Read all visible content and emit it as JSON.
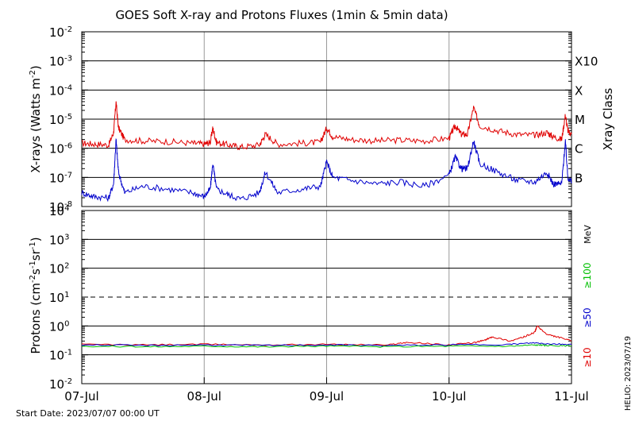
{
  "title": "GOES Soft X-ray and Protons Fluxes   (1min & 5min data)",
  "footer": {
    "start_date": "Start Date: 2023/07/07 00:00 UT",
    "stamp": "HELIO: 2023/07/19"
  },
  "colors": {
    "red": "#e00000",
    "blue": "#0000cc",
    "green": "#00c000",
    "grid": "#000000",
    "vgrid": "#999999"
  },
  "chart_data": [
    {
      "type": "line",
      "name": "xray",
      "ylabel_main": "X-rays (Watts m",
      "ylabel_sup": "-2",
      "ylabel_end": ")",
      "right_axis_label": "Xray Class",
      "y_scale": "log",
      "ylim": [
        1e-08,
        0.01
      ],
      "y_ticks": [
        {
          "base": "10",
          "exp": "-2"
        },
        {
          "base": "10",
          "exp": "-3"
        },
        {
          "base": "10",
          "exp": "-4"
        },
        {
          "base": "10",
          "exp": "-5"
        },
        {
          "base": "10",
          "exp": "-6"
        },
        {
          "base": "10",
          "exp": "-7"
        },
        {
          "base": "10",
          "exp": "-8"
        }
      ],
      "y_tick_values": [
        0.01,
        0.001,
        0.0001,
        1e-05,
        1e-06,
        1e-07,
        1e-08
      ],
      "gridlines": [
        0.001,
        0.0001,
        1e-05,
        1e-06,
        1e-07
      ],
      "classes": [
        {
          "label": "X10",
          "value": 0.001
        },
        {
          "label": "X",
          "value": 0.0001
        },
        {
          "label": "M",
          "value": 1e-05
        },
        {
          "label": "C",
          "value": 1e-06
        },
        {
          "label": "B",
          "value": 1e-07
        }
      ],
      "xlim_days": [
        0,
        4
      ],
      "series": [
        {
          "color_key": "red",
          "x": [
            0,
            0.1,
            0.22,
            0.26,
            0.28,
            0.3,
            0.35,
            0.5,
            0.7,
            0.9,
            1.0,
            1.05,
            1.07,
            1.1,
            1.2,
            1.3,
            1.45,
            1.5,
            1.6,
            1.8,
            1.95,
            2.0,
            2.05,
            2.2,
            2.4,
            2.6,
            2.8,
            3.0,
            3.05,
            3.1,
            3.15,
            3.2,
            3.25,
            3.4,
            3.55,
            3.7,
            3.8,
            3.85,
            3.92,
            3.95,
            3.97,
            4.0
          ],
          "y": [
            1.5e-06,
            1.4e-06,
            1.3e-06,
            3.5e-06,
            3.8e-05,
            5e-06,
            2e-06,
            1.8e-06,
            1.7e-06,
            1.5e-06,
            1.4e-06,
            1.6e-06,
            5e-06,
            1.6e-06,
            1.3e-06,
            1.1e-06,
            1.3e-06,
            3e-06,
            1.4e-06,
            1.5e-06,
            1.6e-06,
            5e-06,
            2.5e-06,
            2e-06,
            1.8e-06,
            1.9e-06,
            1.8e-06,
            2.2e-06,
            6e-06,
            3e-06,
            3e-06,
            2.5e-05,
            6e-06,
            4e-06,
            3e-06,
            2.8e-06,
            3.5e-06,
            2.5e-06,
            2e-06,
            1.4e-05,
            4e-06,
            3e-06
          ]
        },
        {
          "color_key": "blue",
          "x": [
            0,
            0.1,
            0.22,
            0.26,
            0.28,
            0.3,
            0.35,
            0.5,
            0.7,
            0.9,
            1.0,
            1.05,
            1.07,
            1.1,
            1.2,
            1.3,
            1.45,
            1.5,
            1.6,
            1.8,
            1.95,
            2.0,
            2.05,
            2.2,
            2.4,
            2.6,
            2.8,
            3.0,
            3.05,
            3.1,
            3.15,
            3.2,
            3.25,
            3.4,
            3.55,
            3.7,
            3.8,
            3.85,
            3.92,
            3.95,
            3.97,
            4.0
          ],
          "y": [
            3e-08,
            2.2e-08,
            2e-08,
            6e-08,
            2e-06,
            1.5e-07,
            3e-08,
            5e-08,
            4e-08,
            3e-08,
            2.2e-08,
            4e-08,
            3e-07,
            4e-08,
            2.5e-08,
            1.8e-08,
            3e-08,
            1.5e-07,
            3e-08,
            4e-08,
            5e-08,
            3.5e-07,
            1e-07,
            8e-08,
            6e-08,
            7e-08,
            5e-08,
            1.2e-07,
            5e-07,
            2e-07,
            2e-07,
            1.8e-06,
            3e-07,
            1.5e-07,
            8e-08,
            7e-08,
            1.5e-07,
            6e-08,
            6e-08,
            1.8e-06,
            1e-07,
            7e-08
          ]
        }
      ]
    },
    {
      "type": "line",
      "name": "protons",
      "ylabel_main": "Protons (cm",
      "ylabel_sup1": "-2",
      "ylabel_mid": "s",
      "ylabel_sup2": "-1",
      "ylabel_mid2": "sr",
      "ylabel_sup3": "-1",
      "ylabel_end": ")",
      "y_scale": "log",
      "ylim": [
        0.01,
        10000
      ],
      "y_ticks": [
        {
          "base": "10",
          "exp": "4"
        },
        {
          "base": "10",
          "exp": "3"
        },
        {
          "base": "10",
          "exp": "2"
        },
        {
          "base": "10",
          "exp": "1"
        },
        {
          "base": "10",
          "exp": "0"
        },
        {
          "base": "10",
          "exp": "-1"
        },
        {
          "base": "10",
          "exp": "-2"
        }
      ],
      "y_tick_values": [
        10000,
        1000,
        100,
        10,
        1,
        0.1,
        0.01
      ],
      "gridlines": [
        1000,
        100,
        1,
        0.1
      ],
      "dashed_gridline": 10,
      "energy_unit": "MeV",
      "energy_labels": [
        {
          "label": "≥10",
          "color_key": "red"
        },
        {
          "label": "≥50",
          "color_key": "blue"
        },
        {
          "label": "≥100",
          "color_key": "green"
        }
      ],
      "xlim_days": [
        0,
        4
      ],
      "series": [
        {
          "color_key": "red",
          "x": [
            0,
            0.5,
            1.0,
            1.5,
            2.0,
            2.5,
            2.65,
            3.0,
            3.2,
            3.3,
            3.35,
            3.5,
            3.6,
            3.7,
            3.72,
            3.8,
            3.9,
            4.0
          ],
          "y": [
            0.23,
            0.22,
            0.23,
            0.22,
            0.23,
            0.22,
            0.27,
            0.22,
            0.26,
            0.33,
            0.42,
            0.3,
            0.4,
            0.6,
            1.0,
            0.5,
            0.4,
            0.3
          ]
        },
        {
          "color_key": "blue",
          "x": [
            0,
            0.5,
            1.0,
            1.5,
            2.0,
            2.5,
            3.0,
            3.5,
            3.7,
            3.8,
            4.0
          ],
          "y": [
            0.22,
            0.21,
            0.22,
            0.21,
            0.22,
            0.21,
            0.22,
            0.23,
            0.26,
            0.24,
            0.23
          ]
        },
        {
          "color_key": "green",
          "x": [
            0,
            0.5,
            1.0,
            1.5,
            2.0,
            2.5,
            3.0,
            3.5,
            3.7,
            3.8,
            4.0
          ],
          "y": [
            0.2,
            0.19,
            0.2,
            0.19,
            0.2,
            0.19,
            0.2,
            0.2,
            0.22,
            0.21,
            0.2
          ]
        }
      ]
    }
  ],
  "x_ticks": [
    "07-Jul",
    "08-Jul",
    "09-Jul",
    "10-Jul",
    "11-Jul"
  ],
  "x_tick_days": [
    0,
    1,
    2,
    3,
    4
  ]
}
